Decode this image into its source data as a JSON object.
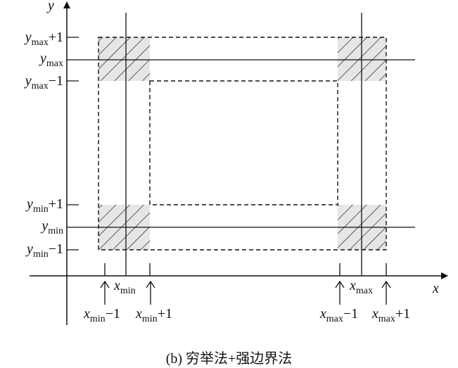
{
  "axes": {
    "x_name": "x",
    "y_name": "y"
  },
  "y_labels": [
    {
      "var": "y",
      "sub": "max",
      "suffix": "+1"
    },
    {
      "var": "y",
      "sub": "max",
      "suffix": ""
    },
    {
      "var": "y",
      "sub": "max",
      "suffix": "−1"
    },
    {
      "var": "y",
      "sub": "min",
      "suffix": "+1"
    },
    {
      "var": "y",
      "sub": "min",
      "suffix": ""
    },
    {
      "var": "y",
      "sub": "min",
      "suffix": "−1"
    }
  ],
  "x_labels": [
    {
      "var": "x",
      "sub": "min",
      "suffix": "−1"
    },
    {
      "var": "x",
      "sub": "min",
      "suffix": ""
    },
    {
      "var": "x",
      "sub": "min",
      "suffix": "+1"
    },
    {
      "var": "x",
      "sub": "max",
      "suffix": "−1"
    },
    {
      "var": "x",
      "sub": "max",
      "suffix": ""
    },
    {
      "var": "x",
      "sub": "max",
      "suffix": "+1"
    }
  ],
  "caption": "(b) 穷举法+强边界法",
  "colors": {
    "line": "#111111",
    "hatch_fill": "#e6e6e6"
  }
}
